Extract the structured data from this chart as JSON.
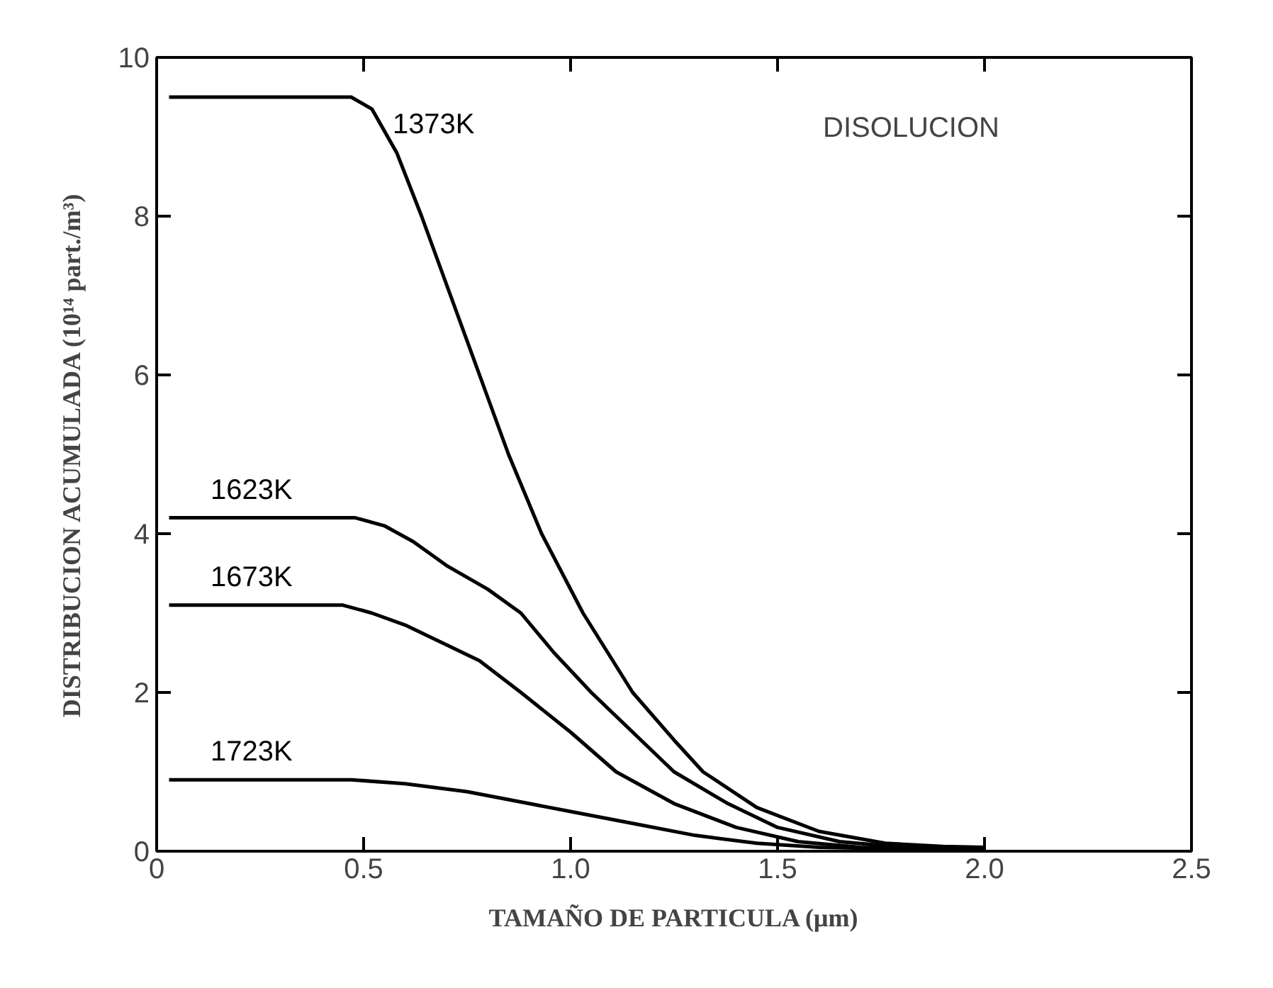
{
  "chart_data": {
    "type": "line",
    "xlabel": "TAMAÑO DE PARTICULA (μm)",
    "ylabel": "DISTRIBUCION ACUMULADA (10¹⁴ part./m³)",
    "xlim": [
      0,
      2.5
    ],
    "ylim": [
      0,
      10
    ],
    "xticks": [
      0,
      0.5,
      {
        "value": 1,
        "label": "1.0"
      },
      1.5,
      {
        "value": 2,
        "label": "2.0"
      },
      2.5
    ],
    "yticks": [
      0,
      2,
      4,
      6,
      8,
      10
    ],
    "grid": false,
    "marker": "none",
    "line_style": "solid",
    "annotations": [
      "DISOLUCION"
    ],
    "series": [
      {
        "name": "1373K",
        "color": "#000000",
        "x": [
          0.03,
          0.3,
          0.47,
          0.52,
          0.58,
          0.64,
          0.71,
          0.78,
          0.85,
          0.93,
          1.03,
          1.15,
          1.25,
          1.32,
          1.45,
          1.6,
          1.76,
          1.9,
          2.0
        ],
        "values": [
          9.5,
          9.5,
          9.5,
          9.35,
          8.8,
          8.0,
          7.0,
          6.0,
          5.0,
          4.0,
          3.0,
          2.0,
          1.4,
          1.0,
          0.55,
          0.25,
          0.1,
          0.06,
          0.05
        ]
      },
      {
        "name": "1623K",
        "color": "#000000",
        "x": [
          0.03,
          0.3,
          0.48,
          0.55,
          0.62,
          0.7,
          0.8,
          0.88,
          0.96,
          1.05,
          1.15,
          1.25,
          1.38,
          1.5,
          1.65,
          1.8,
          2.0
        ],
        "values": [
          4.2,
          4.2,
          4.2,
          4.1,
          3.9,
          3.6,
          3.3,
          3.0,
          2.5,
          2.0,
          1.5,
          1.0,
          0.6,
          0.3,
          0.12,
          0.05,
          0.03
        ]
      },
      {
        "name": "1673K",
        "color": "#000000",
        "x": [
          0.03,
          0.3,
          0.45,
          0.52,
          0.6,
          0.7,
          0.78,
          0.88,
          1.0,
          1.11,
          1.25,
          1.4,
          1.55,
          1.7,
          1.85,
          2.0
        ],
        "values": [
          3.1,
          3.1,
          3.1,
          3.0,
          2.85,
          2.6,
          2.4,
          2.0,
          1.5,
          1.0,
          0.6,
          0.3,
          0.12,
          0.05,
          0.03,
          0.02
        ]
      },
      {
        "name": "1723K",
        "color": "#000000",
        "x": [
          0.03,
          0.3,
          0.47,
          0.6,
          0.75,
          0.9,
          1.0,
          1.15,
          1.3,
          1.45,
          1.6,
          1.8,
          2.0
        ],
        "values": [
          0.9,
          0.9,
          0.9,
          0.85,
          0.75,
          0.6,
          0.5,
          0.35,
          0.2,
          0.1,
          0.05,
          0.03,
          0.02
        ]
      }
    ]
  }
}
